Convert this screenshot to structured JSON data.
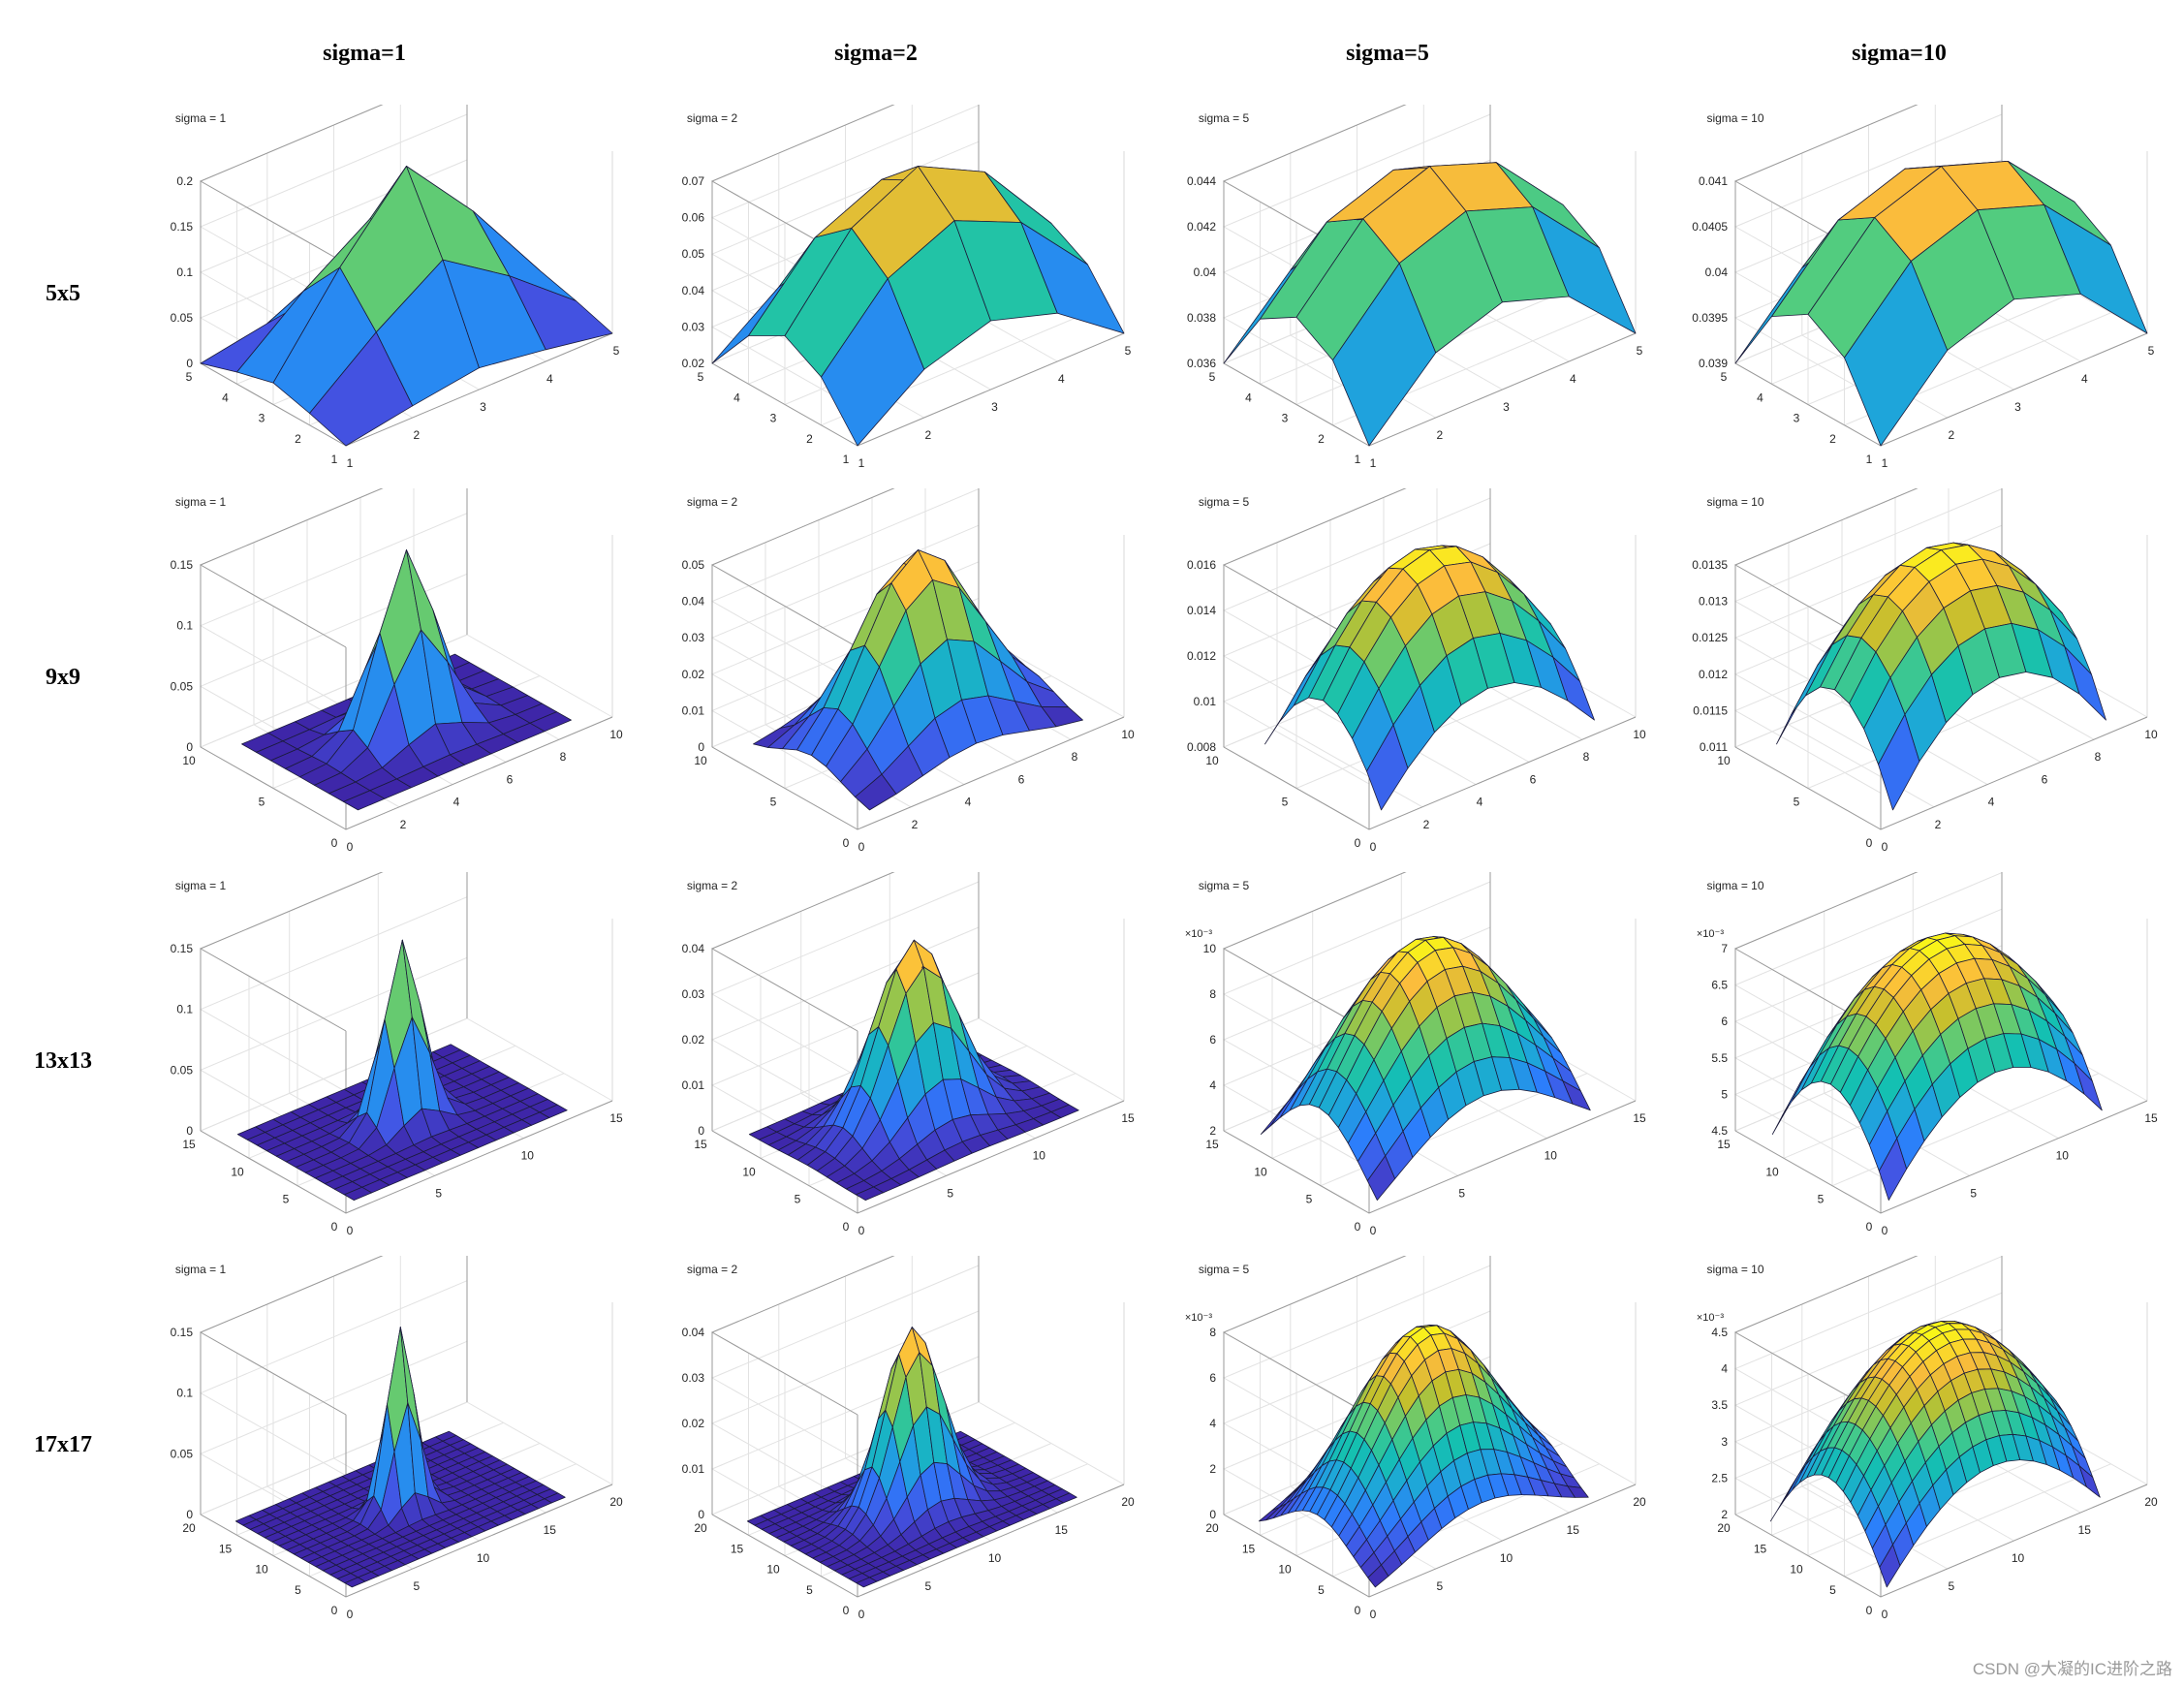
{
  "column_headers": [
    "sigma=1",
    "sigma=2",
    "sigma=5",
    "sigma=10"
  ],
  "row_headers": [
    "5x5",
    "9x9",
    "13x13",
    "17x17"
  ],
  "watermark": "CSDN @大凝的IC进阶之路",
  "colormap": [
    "#3e26a8",
    "#4353e3",
    "#2c7efb",
    "#1ea6d9",
    "#14c0b1",
    "#54cc7d",
    "#c2c02c",
    "#fbbc3c",
    "#f9fb15"
  ],
  "chart_data": [
    {
      "type": "surface",
      "title": "sigma = 1",
      "size": 5,
      "sigma": 1,
      "xlim": [
        1,
        5
      ],
      "ylim": [
        1,
        5
      ],
      "zlim": [
        0,
        0.2
      ],
      "xticks": [
        "1",
        "2",
        "3",
        "4",
        "5"
      ],
      "yticks": [
        "1",
        "2",
        "3",
        "4",
        "5"
      ],
      "zticks": [
        "0",
        "0.05",
        "0.1",
        "0.15",
        "0.2"
      ],
      "zscale": ""
    },
    {
      "type": "surface",
      "title": "sigma = 2",
      "size": 5,
      "sigma": 2,
      "xlim": [
        1,
        5
      ],
      "ylim": [
        1,
        5
      ],
      "zlim": [
        0.02,
        0.07
      ],
      "xticks": [
        "1",
        "2",
        "3",
        "4",
        "5"
      ],
      "yticks": [
        "1",
        "2",
        "3",
        "4",
        "5"
      ],
      "zticks": [
        "0.02",
        "0.03",
        "0.04",
        "0.05",
        "0.06",
        "0.07"
      ],
      "zscale": ""
    },
    {
      "type": "surface",
      "title": "sigma = 5",
      "size": 5,
      "sigma": 5,
      "xlim": [
        1,
        5
      ],
      "ylim": [
        1,
        5
      ],
      "zlim": [
        0.036,
        0.044
      ],
      "xticks": [
        "1",
        "2",
        "3",
        "4",
        "5"
      ],
      "yticks": [
        "1",
        "2",
        "3",
        "4",
        "5"
      ],
      "zticks": [
        "0.036",
        "0.038",
        "0.04",
        "0.042",
        "0.044"
      ],
      "zscale": ""
    },
    {
      "type": "surface",
      "title": "sigma = 10",
      "size": 5,
      "sigma": 10,
      "xlim": [
        1,
        5
      ],
      "ylim": [
        1,
        5
      ],
      "zlim": [
        0.039,
        0.041
      ],
      "xticks": [
        "1",
        "2",
        "3",
        "4",
        "5"
      ],
      "yticks": [
        "1",
        "2",
        "3",
        "4",
        "5"
      ],
      "zticks": [
        "0.039",
        "0.0395",
        "0.04",
        "0.0405",
        "0.041"
      ],
      "zscale": ""
    },
    {
      "type": "surface",
      "title": "sigma = 1",
      "size": 9,
      "sigma": 1,
      "xlim": [
        0,
        10
      ],
      "ylim": [
        0,
        10
      ],
      "zlim": [
        0,
        0.16
      ],
      "xticks": [
        "0",
        "2",
        "4",
        "6",
        "8",
        "10"
      ],
      "yticks": [
        "0",
        "5",
        "10"
      ],
      "zticks": [
        "0",
        "0.05",
        "0.1",
        "0.15"
      ],
      "zscale": ""
    },
    {
      "type": "surface",
      "title": "sigma = 2",
      "size": 9,
      "sigma": 2,
      "xlim": [
        0,
        10
      ],
      "ylim": [
        0,
        10
      ],
      "zlim": [
        0,
        0.05
      ],
      "xticks": [
        "0",
        "2",
        "4",
        "6",
        "8",
        "10"
      ],
      "yticks": [
        "0",
        "5",
        "10"
      ],
      "zticks": [
        "0",
        "0.01",
        "0.02",
        "0.03",
        "0.04",
        "0.05"
      ],
      "zscale": ""
    },
    {
      "type": "surface",
      "title": "sigma = 5",
      "size": 9,
      "sigma": 5,
      "xlim": [
        0,
        10
      ],
      "ylim": [
        0,
        10
      ],
      "zlim": [
        0.008,
        0.016
      ],
      "xticks": [
        "0",
        "2",
        "4",
        "6",
        "8",
        "10"
      ],
      "yticks": [
        "0",
        "5",
        "10"
      ],
      "zticks": [
        "0.008",
        "0.01",
        "0.012",
        "0.014",
        "0.016"
      ],
      "zscale": ""
    },
    {
      "type": "surface",
      "title": "sigma = 10",
      "size": 9,
      "sigma": 10,
      "xlim": [
        0,
        10
      ],
      "ylim": [
        0,
        10
      ],
      "zlim": [
        0.011,
        0.0135
      ],
      "xticks": [
        "0",
        "2",
        "4",
        "6",
        "8",
        "10"
      ],
      "yticks": [
        "0",
        "5",
        "10"
      ],
      "zticks": [
        "0.011",
        "0.0115",
        "0.012",
        "0.0125",
        "0.013",
        "0.0135"
      ],
      "zscale": ""
    },
    {
      "type": "surface",
      "title": "sigma = 1",
      "size": 13,
      "sigma": 1,
      "xlim": [
        0,
        15
      ],
      "ylim": [
        0,
        15
      ],
      "zlim": [
        0,
        0.16
      ],
      "xticks": [
        "0",
        "5",
        "10",
        "15"
      ],
      "yticks": [
        "0",
        "5",
        "10",
        "15"
      ],
      "zticks": [
        "0",
        "0.05",
        "0.1",
        "0.15"
      ],
      "zscale": ""
    },
    {
      "type": "surface",
      "title": "sigma = 2",
      "size": 13,
      "sigma": 2,
      "xlim": [
        0,
        15
      ],
      "ylim": [
        0,
        15
      ],
      "zlim": [
        0,
        0.04
      ],
      "xticks": [
        "0",
        "5",
        "10",
        "15"
      ],
      "yticks": [
        "0",
        "5",
        "10",
        "15"
      ],
      "zticks": [
        "0",
        "0.01",
        "0.02",
        "0.03",
        "0.04"
      ],
      "zscale": ""
    },
    {
      "type": "surface",
      "title": "sigma = 5",
      "size": 13,
      "sigma": 5,
      "xlim": [
        0,
        15
      ],
      "ylim": [
        0,
        15
      ],
      "zlim": [
        0.002,
        0.01
      ],
      "xticks": [
        "0",
        "5",
        "10",
        "15"
      ],
      "yticks": [
        "0",
        "5",
        "10",
        "15"
      ],
      "zticks": [
        "2",
        "4",
        "6",
        "8",
        "10"
      ],
      "zscale": "×10⁻³"
    },
    {
      "type": "surface",
      "title": "sigma = 10",
      "size": 13,
      "sigma": 10,
      "xlim": [
        0,
        15
      ],
      "ylim": [
        0,
        15
      ],
      "zlim": [
        0.0045,
        0.007
      ],
      "xticks": [
        "0",
        "5",
        "10",
        "15"
      ],
      "yticks": [
        "0",
        "5",
        "10",
        "15"
      ],
      "zticks": [
        "4.5",
        "5",
        "5.5",
        "6",
        "6.5",
        "7"
      ],
      "zscale": "×10⁻³"
    },
    {
      "type": "surface",
      "title": "sigma = 1",
      "size": 17,
      "sigma": 1,
      "xlim": [
        0,
        20
      ],
      "ylim": [
        0,
        20
      ],
      "zlim": [
        0,
        0.16
      ],
      "xticks": [
        "0",
        "5",
        "10",
        "15",
        "20"
      ],
      "yticks": [
        "0",
        "5",
        "10",
        "15",
        "20"
      ],
      "zticks": [
        "0",
        "0.05",
        "0.1",
        "0.15"
      ],
      "zscale": ""
    },
    {
      "type": "surface",
      "title": "sigma = 2",
      "size": 17,
      "sigma": 2,
      "xlim": [
        0,
        20
      ],
      "ylim": [
        0,
        20
      ],
      "zlim": [
        0,
        0.04
      ],
      "xticks": [
        "0",
        "5",
        "10",
        "15",
        "20"
      ],
      "yticks": [
        "0",
        "5",
        "10",
        "15",
        "20"
      ],
      "zticks": [
        "0",
        "0.01",
        "0.02",
        "0.03",
        "0.04"
      ],
      "zscale": ""
    },
    {
      "type": "surface",
      "title": "sigma = 5",
      "size": 17,
      "sigma": 5,
      "xlim": [
        0,
        20
      ],
      "ylim": [
        0,
        20
      ],
      "zlim": [
        0,
        0.008
      ],
      "xticks": [
        "0",
        "5",
        "10",
        "15",
        "20"
      ],
      "yticks": [
        "0",
        "5",
        "10",
        "15",
        "20"
      ],
      "zticks": [
        "0",
        "2",
        "4",
        "6",
        "8"
      ],
      "zscale": "×10⁻³"
    },
    {
      "type": "surface",
      "title": "sigma = 10",
      "size": 17,
      "sigma": 10,
      "xlim": [
        0,
        20
      ],
      "ylim": [
        0,
        20
      ],
      "zlim": [
        0.002,
        0.0045
      ],
      "xticks": [
        "0",
        "5",
        "10",
        "15",
        "20"
      ],
      "yticks": [
        "0",
        "5",
        "10",
        "15",
        "20"
      ],
      "zticks": [
        "2",
        "2.5",
        "3",
        "3.5",
        "4",
        "4.5"
      ],
      "zscale": "×10⁻³"
    }
  ]
}
